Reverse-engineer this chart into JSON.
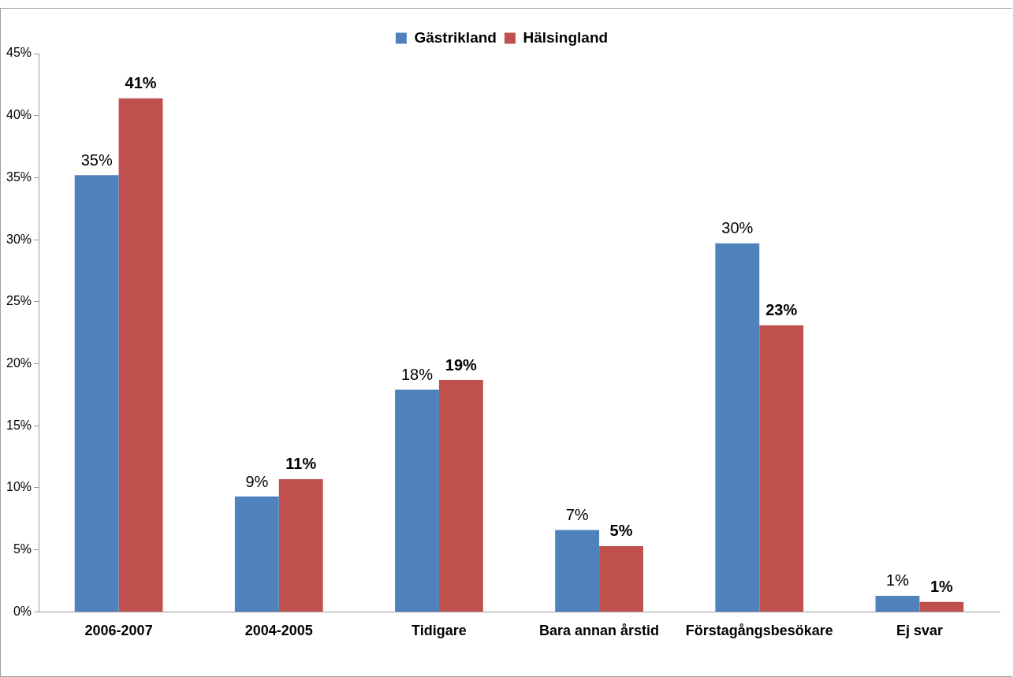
{
  "chart_data": {
    "type": "bar",
    "categories": [
      "2006-2007",
      "2004-2005",
      "Tidigare",
      "Bara annan årstid",
      "Förstagångsbesökare",
      "Ej svar"
    ],
    "series": [
      {
        "name": "Gästrikland",
        "color": "#4f81bd",
        "values": [
          35.2,
          9.3,
          17.9,
          6.6,
          29.7,
          1.3
        ],
        "value_labels": [
          "35%",
          "9%",
          "18%",
          "7%",
          "30%",
          "1%"
        ]
      },
      {
        "name": "Hälsingland",
        "color": "#c0504d",
        "values": [
          41.4,
          10.7,
          18.7,
          5.3,
          23.1,
          0.8
        ],
        "value_labels": [
          "41%",
          "11%",
          "19%",
          "5%",
          "23%",
          "1%"
        ]
      }
    ],
    "ylim": [
      0,
      45
    ],
    "yticks": [
      {
        "value": 0,
        "label": "0%"
      },
      {
        "value": 5,
        "label": "5%"
      },
      {
        "value": 10,
        "label": "10%"
      },
      {
        "value": 15,
        "label": "15%"
      },
      {
        "value": 20,
        "label": "20%"
      },
      {
        "value": 25,
        "label": "25%"
      },
      {
        "value": 30,
        "label": "30%"
      },
      {
        "value": 35,
        "label": "35%"
      },
      {
        "value": 40,
        "label": "40%"
      },
      {
        "value": 45,
        "label": "45%"
      }
    ],
    "grid": false,
    "legend": "top"
  }
}
